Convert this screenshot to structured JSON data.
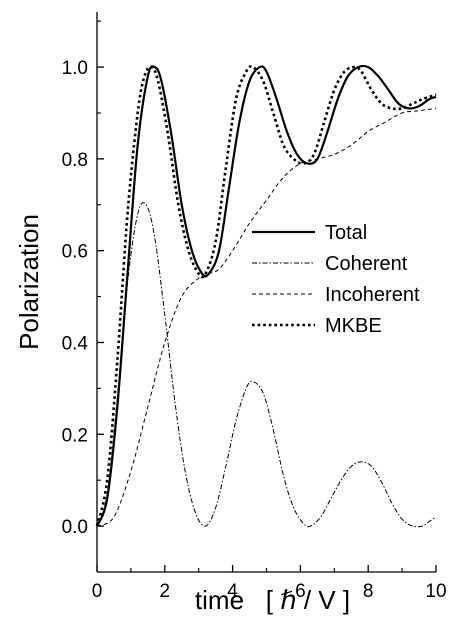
{
  "chart_data": {
    "type": "line",
    "title": "",
    "xlabel": "time   [ ℏ / V ]",
    "ylabel": "Polarization",
    "xlim": [
      0,
      10
    ],
    "ylim": [
      -0.1,
      1.12
    ],
    "xticks": [
      0,
      2,
      4,
      6,
      8,
      10
    ],
    "xtick_labels": [
      "0",
      "2",
      "4",
      "6",
      "8",
      "10"
    ],
    "yticks": [
      0.0,
      0.2,
      0.4,
      0.6,
      0.8,
      1.0
    ],
    "ytick_labels": [
      "0.0",
      "0.2",
      "0.4",
      "0.6",
      "0.8",
      "1.0"
    ],
    "grid": false,
    "legend_position": "center-right",
    "series": [
      {
        "name": "Total",
        "style": "solid",
        "x": [
          0,
          0.3,
          0.6,
          0.9,
          1.2,
          1.5,
          1.7,
          1.9,
          2.2,
          2.5,
          2.8,
          3.1,
          3.3,
          3.6,
          3.9,
          4.2,
          4.5,
          4.8,
          5.0,
          5.3,
          5.6,
          5.9,
          6.2,
          6.5,
          6.8,
          7.1,
          7.4,
          7.7,
          8.0,
          8.3,
          8.6,
          8.9,
          9.2,
          9.5,
          9.8,
          10.0
        ],
        "values": [
          0.0,
          0.06,
          0.26,
          0.55,
          0.83,
          0.98,
          1.0,
          0.97,
          0.85,
          0.7,
          0.6,
          0.55,
          0.55,
          0.6,
          0.74,
          0.88,
          0.97,
          1.0,
          0.99,
          0.93,
          0.86,
          0.81,
          0.79,
          0.8,
          0.86,
          0.93,
          0.98,
          1.0,
          1.0,
          0.98,
          0.95,
          0.92,
          0.91,
          0.915,
          0.93,
          0.935
        ]
      },
      {
        "name": "Coherent",
        "style": "dash-dot",
        "x": [
          0,
          0.3,
          0.6,
          0.9,
          1.2,
          1.45,
          1.7,
          2.0,
          2.3,
          2.6,
          2.9,
          3.2,
          3.5,
          3.8,
          4.1,
          4.4,
          4.6,
          4.9,
          5.2,
          5.5,
          5.8,
          6.1,
          6.3,
          6.6,
          6.9,
          7.2,
          7.5,
          7.8,
          8.1,
          8.4,
          8.7,
          9.0,
          9.3,
          9.6,
          9.8,
          10.0
        ],
        "values": [
          0.0,
          0.07,
          0.28,
          0.53,
          0.68,
          0.7,
          0.63,
          0.46,
          0.27,
          0.12,
          0.03,
          0.0,
          0.04,
          0.13,
          0.23,
          0.3,
          0.315,
          0.29,
          0.21,
          0.11,
          0.04,
          0.005,
          0.0,
          0.02,
          0.06,
          0.1,
          0.13,
          0.14,
          0.13,
          0.095,
          0.05,
          0.015,
          0.0,
          0.0,
          0.01,
          0.02
        ]
      },
      {
        "name": "Incoherent",
        "style": "dashed",
        "x": [
          0,
          0.5,
          1.0,
          1.5,
          2.0,
          2.5,
          3.0,
          3.3,
          3.6,
          4.0,
          4.5,
          5.0,
          5.5,
          6.0,
          6.5,
          7.0,
          7.5,
          8.0,
          8.5,
          9.0,
          9.5,
          10.0
        ],
        "values": [
          0.0,
          0.02,
          0.12,
          0.26,
          0.4,
          0.5,
          0.54,
          0.55,
          0.56,
          0.6,
          0.66,
          0.71,
          0.76,
          0.79,
          0.8,
          0.81,
          0.83,
          0.86,
          0.88,
          0.9,
          0.905,
          0.91
        ]
      },
      {
        "name": "MKBE",
        "style": "dotted",
        "x": [
          0,
          0.3,
          0.6,
          0.9,
          1.2,
          1.4,
          1.6,
          1.8,
          2.1,
          2.4,
          2.7,
          3.0,
          3.2,
          3.5,
          3.8,
          4.1,
          4.4,
          4.6,
          4.9,
          5.2,
          5.5,
          5.8,
          6.1,
          6.4,
          6.7,
          7.0,
          7.3,
          7.6,
          7.8,
          8.1,
          8.4,
          8.7,
          9.0,
          9.3,
          9.6,
          10.0
        ],
        "values": [
          0.0,
          0.1,
          0.36,
          0.68,
          0.9,
          0.98,
          1.0,
          0.97,
          0.85,
          0.7,
          0.6,
          0.55,
          0.55,
          0.62,
          0.78,
          0.93,
          0.99,
          1.0,
          0.97,
          0.9,
          0.83,
          0.8,
          0.79,
          0.81,
          0.88,
          0.95,
          0.99,
          1.0,
          0.99,
          0.95,
          0.92,
          0.91,
          0.91,
          0.92,
          0.93,
          0.94
        ]
      }
    ]
  }
}
